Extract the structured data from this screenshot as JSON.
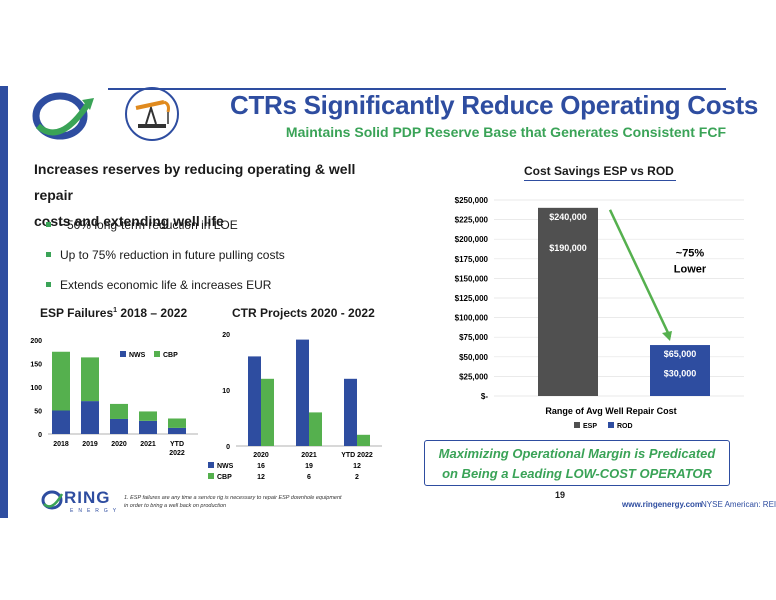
{
  "header": {
    "title": "CTRs Significantly Reduce Operating Costs",
    "subtitle": "Maintains Solid PDP Reserve Base that Generates Consistent FCF"
  },
  "intro": {
    "line1": "Increases reserves by reducing operating & well repair",
    "line2": "costs and extending well life"
  },
  "bullets": [
    "~50% long-term reduction in LOE",
    "Up to 75% reduction in future pulling costs",
    "Extends economic life & increases EUR"
  ],
  "chart_data": [
    {
      "type": "bar",
      "stacked": true,
      "title_main": "ESP Failures",
      "title_sup": "1",
      "title_rest": " 2018 – 2022",
      "categories": [
        "2018",
        "2019",
        "2020",
        "2021",
        "YTD 2022"
      ],
      "series": [
        {
          "name": "NWS",
          "color": "#2e4da0",
          "values": [
            50,
            70,
            32,
            28,
            13
          ]
        },
        {
          "name": "CBP",
          "color": "#55b04e",
          "values": [
            125,
            93,
            32,
            20,
            20
          ]
        }
      ],
      "ylim": [
        0,
        200
      ],
      "yticks": [
        0,
        50,
        100,
        150,
        200
      ],
      "legend": "top-right"
    },
    {
      "type": "bar",
      "title": "CTR Projects 2020 - 2022",
      "categories": [
        "2020",
        "2021",
        "YTD 2022"
      ],
      "series": [
        {
          "name": "NWS",
          "color": "#2e4da0",
          "values": [
            16,
            19,
            12
          ]
        },
        {
          "name": "CBP",
          "color": "#55b04e",
          "values": [
            12,
            6,
            2
          ]
        }
      ],
      "ylim": [
        0,
        20
      ],
      "yticks": [
        0,
        10,
        20
      ],
      "legend": "data-table-bottom"
    },
    {
      "type": "bar",
      "title": "Cost Savings ESP vs ROD",
      "xlabel": "Range of Avg Well Repair Cost",
      "categories": [
        "ESP",
        "ROD"
      ],
      "series": [
        {
          "name": "ESP",
          "color": "#505050",
          "low": 190000,
          "high": 240000,
          "low_label": "$190,000",
          "high_label": "$240,000"
        },
        {
          "name": "ROD",
          "color": "#2e4da0",
          "low": 30000,
          "high": 65000,
          "low_label": "$30,000",
          "high_label": "$65,000"
        }
      ],
      "ylim": [
        0,
        250000
      ],
      "yticks": [
        0,
        25000,
        50000,
        75000,
        100000,
        125000,
        150000,
        175000,
        200000,
        225000,
        250000
      ],
      "ytick_labels": [
        "$-",
        "$25,000",
        "$50,000",
        "$75,000",
        "$100,000",
        "$125,000",
        "$150,000",
        "$175,000",
        "$200,000",
        "$225,000",
        "$250,000"
      ],
      "annotation_line1": "~75%",
      "annotation_line2": "Lower",
      "legend": "bottom"
    }
  ],
  "callout": {
    "line1": "Maximizing Operational Margin is Predicated",
    "line2": "on Being a Leading LOW-COST OPERATOR"
  },
  "footer": {
    "page_number": "19",
    "url": "www.ringenergy.com",
    "exchange": "NYSE American: REI",
    "footnote": "1.   ESP failures are any time a service rig is necessary to repair ESP downhole equipment in order to bring a well back on production",
    "logo_text": "RING",
    "logo_sub": "ENERGY"
  },
  "colors": {
    "brand_blue": "#2e4da0",
    "brand_green": "#3aa357",
    "esp_gray": "#505050"
  }
}
